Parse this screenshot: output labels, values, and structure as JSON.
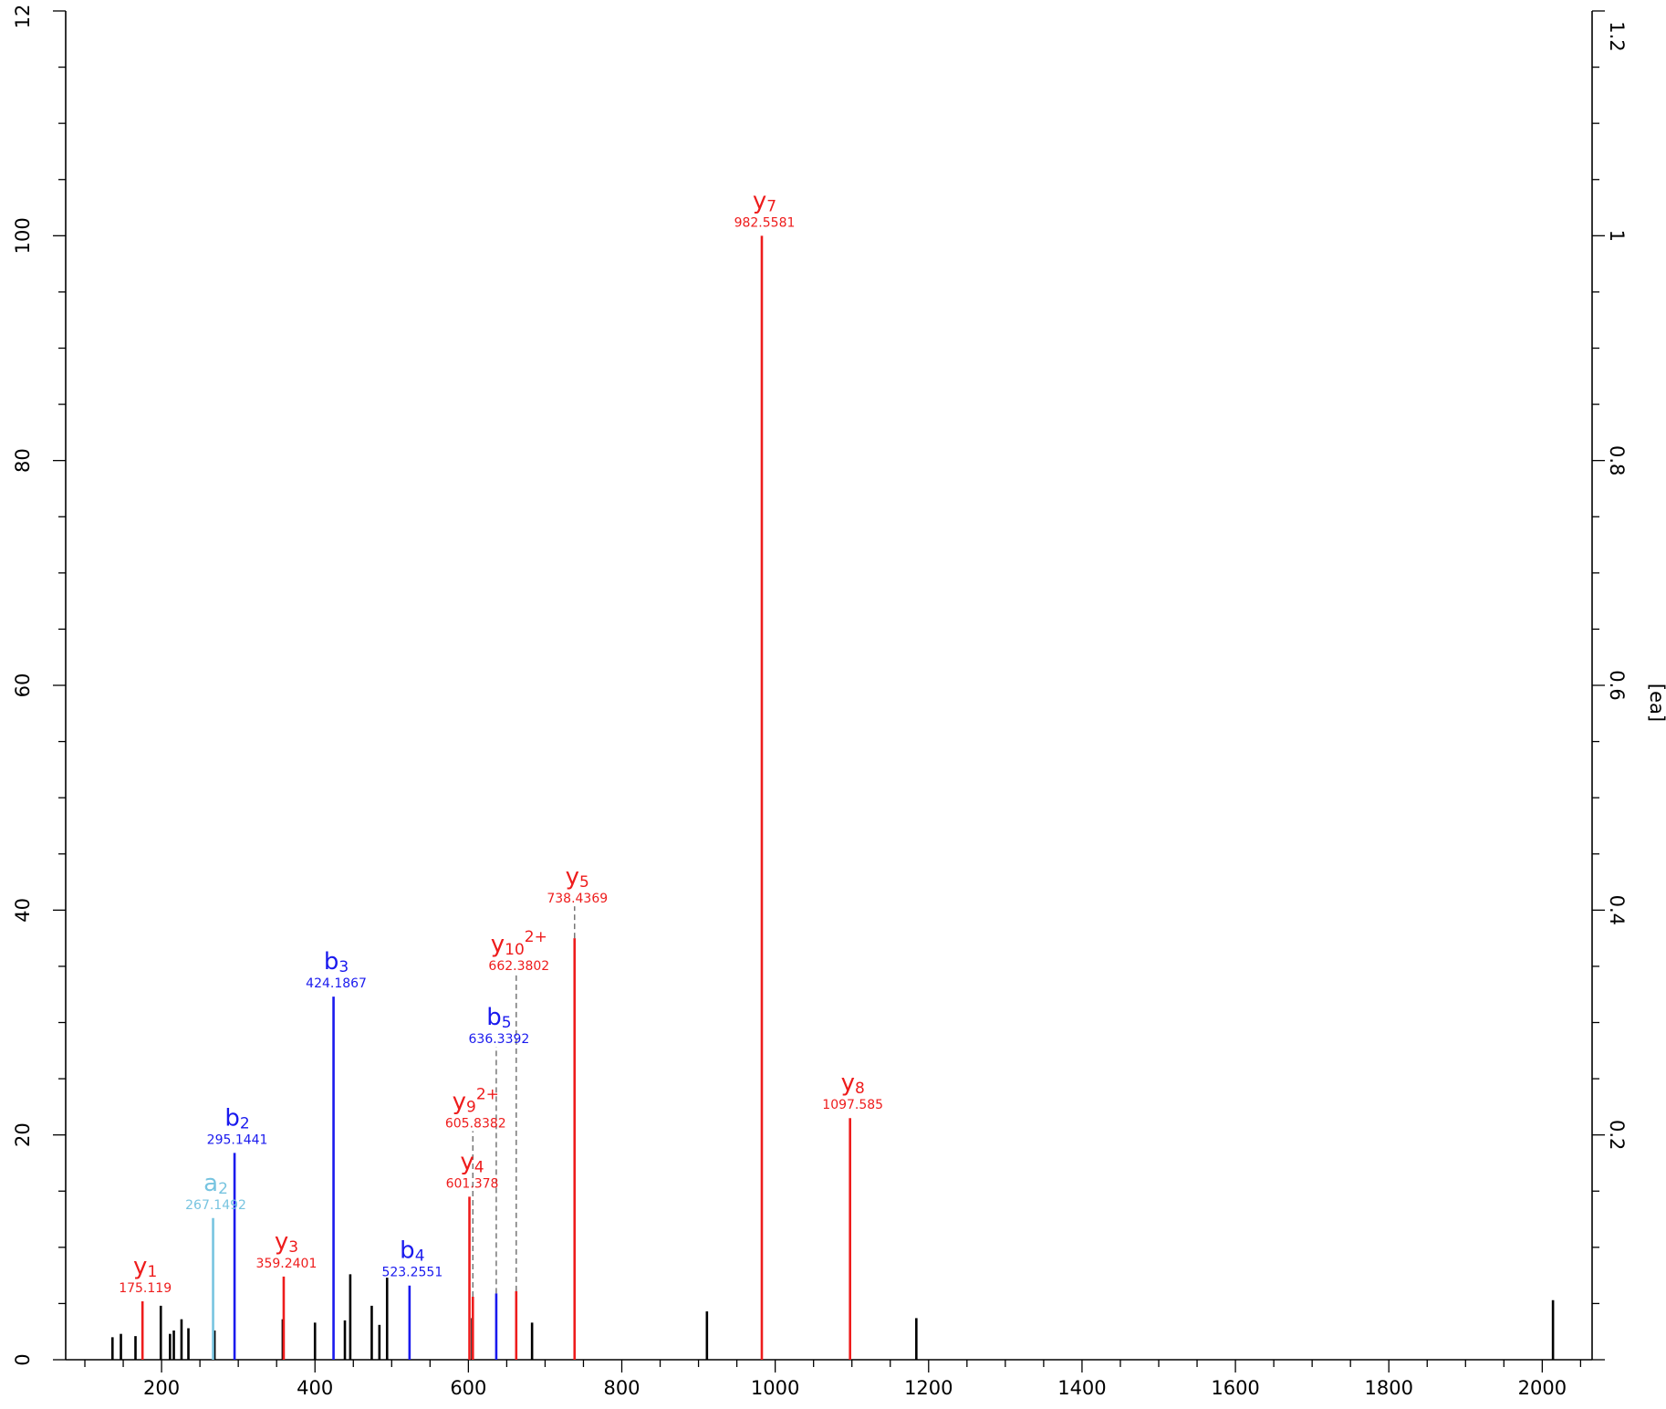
{
  "chart_data": {
    "type": "bar",
    "subtype": "mass-spectrum-stick-plot",
    "title": "",
    "xlabel": "",
    "ylabel": "",
    "y2label": "[ea]",
    "xlim": [
      75,
      2065
    ],
    "ylim": [
      0,
      120
    ],
    "y2lim": [
      0,
      1.2
    ],
    "x_ticks": [
      200,
      400,
      600,
      800,
      1000,
      1200,
      1400,
      1600,
      1800,
      2000
    ],
    "y_ticks": [
      0,
      20,
      40,
      60,
      80,
      100,
      "12"
    ],
    "y2_ticks": [
      0.2,
      0.4,
      0.6,
      0.8,
      1,
      1.2
    ],
    "grid": false,
    "legend": "none",
    "colors": {
      "y": "#ee1c1c",
      "b": "#1a1aee",
      "a": "#77c4e0",
      "unassigned": "#000000",
      "connector": "#777777"
    },
    "series": [
      {
        "name": "",
        "role": "unassigned",
        "points": [
          {
            "mz": 136,
            "intensity": 2.0
          },
          {
            "mz": 147,
            "intensity": 2.3
          },
          {
            "mz": 166,
            "intensity": 2.1
          },
          {
            "mz": 199,
            "intensity": 4.8
          },
          {
            "mz": 211,
            "intensity": 2.3
          },
          {
            "mz": 216,
            "intensity": 2.6
          },
          {
            "mz": 226,
            "intensity": 3.6
          },
          {
            "mz": 235,
            "intensity": 2.8
          },
          {
            "mz": 269,
            "intensity": 2.6
          },
          {
            "mz": 358,
            "intensity": 3.6
          },
          {
            "mz": 400,
            "intensity": 3.3
          },
          {
            "mz": 439,
            "intensity": 3.5
          },
          {
            "mz": 446,
            "intensity": 7.6
          },
          {
            "mz": 474,
            "intensity": 4.8
          },
          {
            "mz": 484,
            "intensity": 3.1
          },
          {
            "mz": 494,
            "intensity": 7.3
          },
          {
            "mz": 605,
            "intensity": 3.7
          },
          {
            "mz": 683,
            "intensity": 3.3
          },
          {
            "mz": 911,
            "intensity": 4.3
          },
          {
            "mz": 1184,
            "intensity": 3.7
          },
          {
            "mz": 2014,
            "intensity": 5.3
          }
        ]
      },
      {
        "name": "",
        "role": "y",
        "points": [
          {
            "mz": 175.119,
            "intensity": 5.2,
            "ion": "y",
            "num": "1",
            "charge": "",
            "label": "175.119"
          },
          {
            "mz": 359.2401,
            "intensity": 7.4,
            "ion": "y",
            "num": "3",
            "charge": "",
            "label": "359.2401"
          },
          {
            "mz": 601.378,
            "intensity": 14.5,
            "ion": "y",
            "num": "4",
            "charge": "",
            "label": "601.378"
          },
          {
            "mz": 605.8382,
            "intensity": 5.6,
            "ion": "y",
            "num": "9",
            "charge": "2+",
            "label": "605.8382",
            "label_at": 20.5
          },
          {
            "mz": 662.3802,
            "intensity": 6.1,
            "ion": "y",
            "num": "10",
            "charge": "2+",
            "label": "662.3802",
            "label_at": 34.5
          },
          {
            "mz": 738.4369,
            "intensity": 37.5,
            "ion": "y",
            "num": "5",
            "charge": "",
            "label": "738.4369",
            "label_at": 40.5
          },
          {
            "mz": 982.5581,
            "intensity": 100.0,
            "ion": "y",
            "num": "7",
            "charge": "",
            "label": "982.5581"
          },
          {
            "mz": 1097.585,
            "intensity": 21.5,
            "ion": "y",
            "num": "8",
            "charge": "",
            "label": "1097.585"
          }
        ]
      },
      {
        "name": "",
        "role": "b",
        "points": [
          {
            "mz": 295.1441,
            "intensity": 18.4,
            "ion": "b",
            "num": "2",
            "charge": "",
            "label": "295.1441"
          },
          {
            "mz": 424.1867,
            "intensity": 32.3,
            "ion": "b",
            "num": "3",
            "charge": "",
            "label": "424.1867"
          },
          {
            "mz": 523.2551,
            "intensity": 6.6,
            "ion": "b",
            "num": "4",
            "charge": "",
            "label": "523.2551"
          },
          {
            "mz": 636.3392,
            "intensity": 5.9,
            "ion": "b",
            "num": "5",
            "charge": "",
            "label": "636.3392",
            "label_at": 28.0
          }
        ]
      },
      {
        "name": "",
        "role": "a",
        "points": [
          {
            "mz": 267.1492,
            "intensity": 12.6,
            "ion": "a",
            "num": "2",
            "charge": "",
            "label": "267.1492"
          }
        ]
      }
    ]
  }
}
